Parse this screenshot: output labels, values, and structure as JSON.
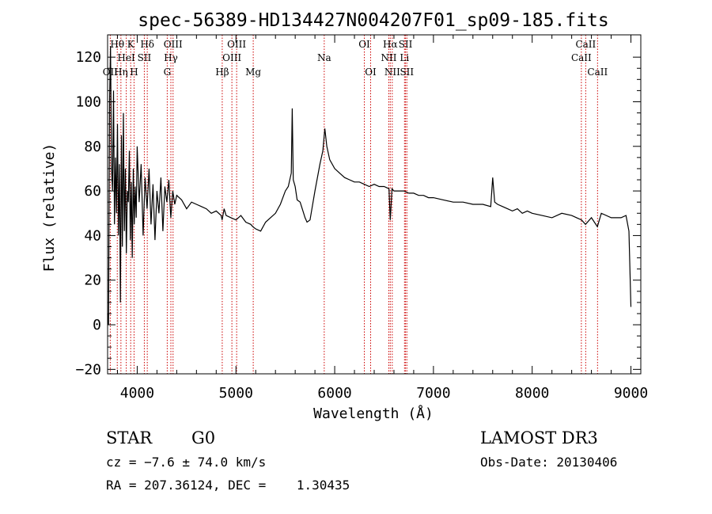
{
  "chart_data": {
    "type": "line",
    "title": "spec-56389-HD134427N004207F01_sp09-185.fits",
    "xlabel": "Wavelength (Å)",
    "ylabel": "Flux (relative)",
    "xlim": [
      3700,
      9100
    ],
    "ylim": [
      -22,
      130
    ],
    "x_ticks": [
      4000,
      5000,
      6000,
      7000,
      8000,
      9000
    ],
    "y_ticks": [
      -20,
      0,
      20,
      40,
      60,
      80,
      100,
      120
    ],
    "series": [
      {
        "x": [
          3700,
          3710,
          3720,
          3730,
          3740,
          3750,
          3760,
          3770,
          3780,
          3790,
          3800,
          3810,
          3820,
          3830,
          3840,
          3850,
          3860,
          3870,
          3880,
          3890,
          3900,
          3910,
          3920,
          3930,
          3940,
          3950,
          3960,
          3970,
          3980,
          3990,
          4000,
          4020,
          4040,
          4060,
          4080,
          4100,
          4120,
          4140,
          4160,
          4180,
          4200,
          4220,
          4240,
          4260,
          4280,
          4300,
          4320,
          4340,
          4360,
          4380,
          4400,
          4450,
          4500,
          4550,
          4600,
          4650,
          4700,
          4750,
          4800,
          4850,
          4860,
          4880,
          4900,
          4950,
          5000,
          5050,
          5100,
          5150,
          5170,
          5200,
          5250,
          5300,
          5350,
          5400,
          5450,
          5500,
          5530,
          5560,
          5570,
          5580,
          5600,
          5620,
          5650,
          5700,
          5720,
          5750,
          5800,
          5850,
          5880,
          5900,
          5920,
          5950,
          6000,
          6050,
          6100,
          6150,
          6200,
          6250,
          6300,
          6350,
          6400,
          6450,
          6500,
          6550,
          6563,
          6580,
          6600,
          6650,
          6700,
          6750,
          6800,
          6850,
          6900,
          6950,
          7000,
          7100,
          7200,
          7300,
          7400,
          7500,
          7580,
          7600,
          7620,
          7650,
          7700,
          7750,
          7800,
          7850,
          7900,
          7950,
          8000,
          8100,
          8200,
          8300,
          8400,
          8450,
          8500,
          8540,
          8600,
          8660,
          8700,
          8800,
          8900,
          8950,
          8980,
          9000
        ],
        "y": [
          5,
          0,
          100,
          125,
          70,
          60,
          105,
          45,
          75,
          50,
          90,
          40,
          72,
          10,
          85,
          35,
          95,
          42,
          70,
          32,
          60,
          55,
          78,
          38,
          64,
          30,
          70,
          45,
          62,
          48,
          80,
          55,
          72,
          40,
          66,
          52,
          70,
          45,
          63,
          38,
          60,
          50,
          66,
          42,
          62,
          55,
          65,
          48,
          60,
          54,
          58,
          56,
          52,
          55,
          54,
          53,
          52,
          50,
          51,
          49,
          47,
          52,
          49,
          48,
          47,
          49,
          46,
          45,
          44,
          43,
          42,
          46,
          48,
          50,
          54,
          60,
          62,
          68,
          97,
          65,
          62,
          56,
          55,
          48,
          46,
          47,
          60,
          72,
          78,
          88,
          80,
          74,
          70,
          68,
          66,
          65,
          64,
          64,
          63,
          62,
          63,
          62,
          62,
          61,
          47,
          61,
          60,
          60,
          60,
          59,
          59,
          58,
          58,
          57,
          57,
          56,
          55,
          55,
          54,
          54,
          53,
          66,
          55,
          54,
          53,
          52,
          51,
          52,
          50,
          51,
          50,
          49,
          48,
          50,
          49,
          48,
          47,
          45,
          48,
          44,
          50,
          48,
          48,
          49,
          42,
          8
        ]
      }
    ],
    "spectral_lines": [
      {
        "label": "OII",
        "x": 3727,
        "row": 3
      },
      {
        "label": "Hθ",
        "x": 3798,
        "row": 1
      },
      {
        "label": "Hη",
        "x": 3835,
        "row": 3
      },
      {
        "label": "HeI",
        "x": 3889,
        "row": 2
      },
      {
        "label": "K",
        "x": 3934,
        "row": 1
      },
      {
        "label": "H",
        "x": 3968,
        "row": 3
      },
      {
        "label": "SII",
        "x": 4072,
        "row": 2
      },
      {
        "label": "Hδ",
        "x": 4102,
        "row": 1
      },
      {
        "label": "G",
        "x": 4304,
        "row": 3
      },
      {
        "label": "Hγ",
        "x": 4341,
        "row": 2
      },
      {
        "label": "OIII",
        "x": 4363,
        "row": 1
      },
      {
        "label": "Hβ",
        "x": 4861,
        "row": 3
      },
      {
        "label": "OIII",
        "x": 4959,
        "row": 2
      },
      {
        "label": "OIII",
        "x": 5007,
        "row": 1
      },
      {
        "label": "Mg",
        "x": 5175,
        "row": 3
      },
      {
        "label": "Na",
        "x": 5894,
        "row": 2
      },
      {
        "label": "OI",
        "x": 6300,
        "row": 1
      },
      {
        "label": "OI",
        "x": 6364,
        "row": 3
      },
      {
        "label": "NII",
        "x": 6548,
        "row": 2
      },
      {
        "label": "Hα",
        "x": 6563,
        "row": 1
      },
      {
        "label": "NII",
        "x": 6583,
        "row": 3
      },
      {
        "label": "Li",
        "x": 6707,
        "row": 2
      },
      {
        "label": "SII",
        "x": 6717,
        "row": 1
      },
      {
        "label": "SII",
        "x": 6731,
        "row": 3
      },
      {
        "label": "CaII",
        "x": 8498,
        "row": 2
      },
      {
        "label": "CaII",
        "x": 8542,
        "row": 1
      },
      {
        "label": "CaII",
        "x": 8662,
        "row": 3
      }
    ]
  },
  "info": {
    "class_label": "STAR",
    "subclass_label": "G0",
    "cz_text": "cz = −7.6 ± 74.0 km/s",
    "coords_text": "RA = 207.36124, DEC =    1.30435",
    "survey_label": "LAMOST DR3",
    "obs_date_text": "Obs-Date: 20130406"
  },
  "colors": {
    "spectrum": "#000000",
    "line_marker": "#cc0000",
    "axes": "#000000"
  }
}
